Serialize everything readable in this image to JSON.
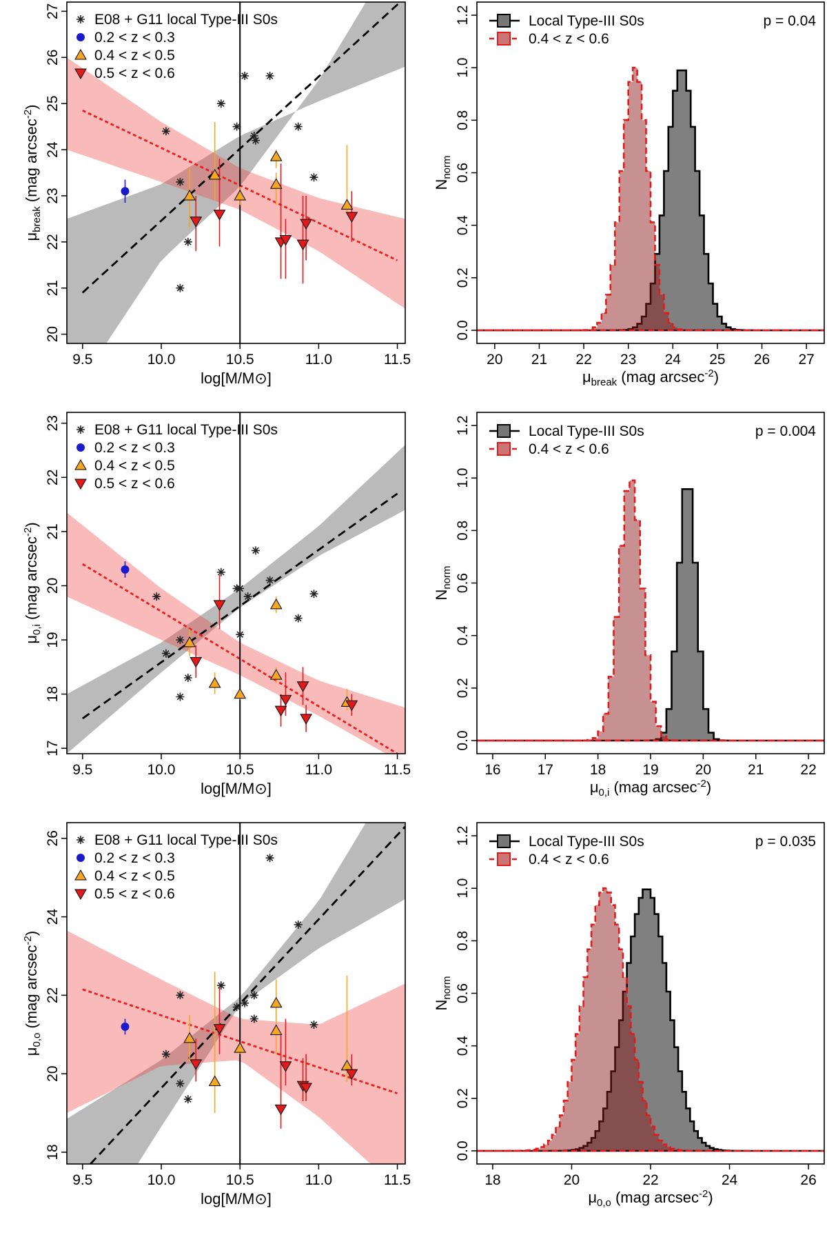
{
  "chart_data": [
    {
      "id": "mu-break-vs-mass",
      "type": "scatter",
      "xlabel": "log[M/M⊙]",
      "ylabel": {
        "sym": "μ",
        "sub": "break",
        "unit": " (mag arcsec",
        "exp": "-2",
        "close": ")"
      },
      "xlim": [
        9.4,
        11.55
      ],
      "ylim": [
        19.8,
        27.2
      ],
      "xticks": [
        9.5,
        10.0,
        10.5,
        11.0,
        11.5
      ],
      "xtick_labels": [
        "9.5",
        "10.0",
        "10.5",
        "11.0",
        "11.5"
      ],
      "yticks": [
        20,
        21,
        22,
        23,
        24,
        25,
        26,
        27
      ],
      "ytick_labels": [
        "20",
        "21",
        "22",
        "23",
        "24",
        "25",
        "26",
        "27"
      ],
      "vline_x": 10.5,
      "legend": [
        {
          "label": "E08 + G11 local Type-III S0s",
          "marker": "star",
          "color": "#000000"
        },
        {
          "label": "0.2 < z < 0.3",
          "marker": "circle",
          "color": "#1a1acc"
        },
        {
          "label": "0.4 < z < 0.5",
          "marker": "triangle-up",
          "color": "#f5a623"
        },
        {
          "label": "0.5 < z < 0.6",
          "marker": "triangle-down",
          "color": "#e31a1c"
        }
      ],
      "local_points": [
        [
          10.03,
          24.4
        ],
        [
          10.12,
          23.3
        ],
        [
          10.12,
          21.0
        ],
        [
          10.17,
          22.0
        ],
        [
          10.38,
          25.0
        ],
        [
          10.48,
          24.5
        ],
        [
          10.53,
          25.6
        ],
        [
          10.59,
          24.3
        ],
        [
          10.6,
          24.2
        ],
        [
          10.69,
          25.6
        ],
        [
          10.87,
          24.5
        ],
        [
          10.97,
          23.4
        ]
      ],
      "low_z_points": [
        [
          9.77,
          23.1,
          22.85,
          23.35
        ]
      ],
      "mid_z_points": [
        [
          10.18,
          23.0,
          22.3,
          23.6
        ],
        [
          10.34,
          23.45,
          22.9,
          24.6
        ],
        [
          10.5,
          23.0,
          22.8,
          23.2
        ],
        [
          10.73,
          23.85,
          23.6,
          24.0
        ],
        [
          10.73,
          23.25,
          22.8,
          23.5
        ],
        [
          11.18,
          22.8,
          22.6,
          24.1
        ]
      ],
      "high_z_points": [
        [
          10.22,
          22.45,
          21.8,
          23.0
        ],
        [
          10.37,
          22.6,
          21.9,
          23.8
        ],
        [
          10.76,
          22.0,
          21.2,
          23.7
        ],
        [
          10.79,
          22.05,
          21.2,
          22.5
        ],
        [
          10.9,
          21.95,
          21.1,
          23.0
        ],
        [
          10.92,
          22.4,
          21.6,
          23.0
        ],
        [
          11.21,
          22.55,
          22.0,
          23.1
        ]
      ],
      "local_fit": {
        "line": [
          [
            9.5,
            20.9
          ],
          [
            11.55,
            27.3
          ]
        ],
        "upper": [
          [
            9.4,
            22.5
          ],
          [
            10.0,
            23.25
          ],
          [
            10.5,
            24.3
          ],
          [
            11.0,
            25.05
          ],
          [
            11.55,
            25.8
          ]
        ],
        "lower": [
          [
            9.65,
            19.8
          ],
          [
            10.0,
            21.6
          ],
          [
            10.5,
            23.2
          ],
          [
            11.0,
            25.5
          ],
          [
            11.3,
            27.2
          ]
        ]
      },
      "hz_fit": {
        "line": [
          [
            9.5,
            24.85
          ],
          [
            11.5,
            21.6
          ]
        ],
        "upper": [
          [
            9.4,
            26.0
          ],
          [
            10.0,
            24.6
          ],
          [
            10.5,
            23.6
          ],
          [
            11.0,
            22.95
          ],
          [
            11.55,
            22.5
          ]
        ],
        "lower": [
          [
            9.4,
            24.0
          ],
          [
            10.0,
            23.3
          ],
          [
            10.5,
            22.7
          ],
          [
            11.0,
            21.8
          ],
          [
            11.55,
            20.55
          ]
        ]
      }
    },
    {
      "id": "mu-break-hist",
      "type": "histogram",
      "xlabel": {
        "sym": "μ",
        "sub": "break",
        "unit": " (mag arcsec",
        "exp": "-2",
        "close": ")"
      },
      "ylabel": {
        "sym": "N",
        "sub": "norm"
      },
      "xlim": [
        19.6,
        27.4
      ],
      "ylim": [
        -0.05,
        1.25
      ],
      "xticks": [
        20,
        21,
        22,
        23,
        24,
        25,
        26,
        27
      ],
      "xtick_labels": [
        "20",
        "21",
        "22",
        "23",
        "24",
        "25",
        "26",
        "27"
      ],
      "yticks": [
        0,
        0.2,
        0.4,
        0.6,
        0.8,
        1.0,
        1.2
      ],
      "ytick_labels": [
        "0.0",
        "0.2",
        "0.4",
        "0.6",
        "0.8",
        "1.0",
        "1.2"
      ],
      "legend": [
        {
          "label": "Local Type-III S0s"
        },
        {
          "label": "0.4 < z < 0.6"
        }
      ],
      "p_value": "p = 0.04",
      "local_mean": 24.2,
      "local_sigma": 0.35,
      "hz_mean": 23.15,
      "hz_sigma": 0.3,
      "bin_width": 0.1
    },
    {
      "id": "mu0i-vs-mass",
      "type": "scatter",
      "xlabel": "log[M/M⊙]",
      "ylabel": {
        "sym": "μ",
        "sub": "0,i",
        "unit": " (mag arcsec",
        "exp": "-2",
        "close": ")"
      },
      "xlim": [
        9.4,
        11.55
      ],
      "ylim": [
        16.9,
        23.2
      ],
      "xticks": [
        9.5,
        10.0,
        10.5,
        11.0,
        11.5
      ],
      "xtick_labels": [
        "9.5",
        "10.0",
        "10.5",
        "11.0",
        "11.5"
      ],
      "yticks": [
        17,
        18,
        19,
        20,
        21,
        22,
        23
      ],
      "ytick_labels": [
        "17",
        "18",
        "19",
        "20",
        "21",
        "22",
        "23"
      ],
      "vline_x": 10.5,
      "legend": [
        {
          "label": "E08 + G11 local Type-III S0s",
          "marker": "star",
          "color": "#000000"
        },
        {
          "label": "0.2 < z < 0.3",
          "marker": "circle",
          "color": "#1a1acc"
        },
        {
          "label": "0.4 < z < 0.5",
          "marker": "triangle-up",
          "color": "#f5a623"
        },
        {
          "label": "0.5 < z < 0.6",
          "marker": "triangle-down",
          "color": "#e31a1c"
        }
      ],
      "local_points": [
        [
          9.97,
          19.8
        ],
        [
          10.03,
          18.75
        ],
        [
          10.12,
          19.0
        ],
        [
          10.12,
          17.95
        ],
        [
          10.17,
          18.3
        ],
        [
          10.38,
          20.25
        ],
        [
          10.48,
          19.95
        ],
        [
          10.5,
          19.1
        ],
        [
          10.5,
          19.95
        ],
        [
          10.55,
          19.8
        ],
        [
          10.6,
          20.65
        ],
        [
          10.69,
          20.1
        ],
        [
          10.87,
          19.4
        ],
        [
          10.97,
          19.85
        ]
      ],
      "low_z_points": [
        [
          9.77,
          20.3,
          20.15,
          20.45
        ]
      ],
      "mid_z_points": [
        [
          10.18,
          18.95,
          18.7,
          19.2
        ],
        [
          10.34,
          18.2,
          18.0,
          18.4
        ],
        [
          10.5,
          18.0,
          17.9,
          18.1
        ],
        [
          10.73,
          18.35,
          18.2,
          18.5
        ],
        [
          10.73,
          19.65,
          19.5,
          19.8
        ],
        [
          11.18,
          17.85,
          17.7,
          18.1
        ]
      ],
      "high_z_points": [
        [
          10.22,
          18.6,
          18.3,
          18.9
        ],
        [
          10.37,
          19.65,
          19.2,
          20.2
        ],
        [
          10.76,
          17.7,
          17.4,
          18.0
        ],
        [
          10.79,
          17.9,
          17.6,
          18.4
        ],
        [
          10.9,
          18.15,
          17.8,
          18.5
        ],
        [
          10.92,
          17.55,
          17.3,
          17.8
        ],
        [
          11.21,
          17.8,
          17.6,
          18.0
        ]
      ],
      "local_fit": {
        "line": [
          [
            9.5,
            17.55
          ],
          [
            11.5,
            21.7
          ]
        ],
        "upper": [
          [
            9.4,
            18.0
          ],
          [
            10.0,
            18.95
          ],
          [
            10.5,
            19.95
          ],
          [
            11.0,
            21.1
          ],
          [
            11.55,
            22.6
          ]
        ],
        "lower": [
          [
            9.4,
            16.9
          ],
          [
            10.0,
            18.4
          ],
          [
            10.5,
            19.6
          ],
          [
            11.0,
            20.55
          ],
          [
            11.55,
            21.4
          ]
        ]
      },
      "hz_fit": {
        "line": [
          [
            9.5,
            20.4
          ],
          [
            11.5,
            16.9
          ]
        ],
        "upper": [
          [
            9.4,
            21.35
          ],
          [
            10.0,
            19.95
          ],
          [
            10.5,
            18.95
          ],
          [
            11.0,
            18.25
          ],
          [
            11.55,
            17.75
          ]
        ],
        "lower": [
          [
            9.4,
            19.8
          ],
          [
            10.0,
            19.0
          ],
          [
            10.5,
            18.35
          ],
          [
            11.0,
            17.6
          ],
          [
            11.55,
            16.7
          ]
        ]
      }
    },
    {
      "id": "mu0i-hist",
      "type": "histogram",
      "xlabel": {
        "sym": "μ",
        "sub": "0,i",
        "unit": " (mag arcsec",
        "exp": "-2",
        "close": ")"
      },
      "ylabel": {
        "sym": "N",
        "sub": "norm"
      },
      "xlim": [
        15.7,
        22.3
      ],
      "ylim": [
        -0.05,
        1.25
      ],
      "xticks": [
        16,
        17,
        18,
        19,
        20,
        21,
        22
      ],
      "xtick_labels": [
        "16",
        "17",
        "18",
        "19",
        "20",
        "21",
        "22"
      ],
      "yticks": [
        0,
        0.2,
        0.4,
        0.6,
        0.8,
        1.0,
        1.2
      ],
      "ytick_labels": [
        "0.0",
        "0.2",
        "0.4",
        "0.6",
        "0.8",
        "1.0",
        "1.2"
      ],
      "legend": [
        {
          "label": "Local Type-III S0s"
        },
        {
          "label": "0.4 < z < 0.6"
        }
      ],
      "p_value": "p = 0.004",
      "local_mean": 19.7,
      "local_sigma": 0.17,
      "hz_mean": 18.62,
      "hz_sigma": 0.22,
      "bin_width": 0.1
    },
    {
      "id": "mu0o-vs-mass",
      "type": "scatter",
      "xlabel": "log[M/M⊙]",
      "ylabel": {
        "sym": "μ",
        "sub": "0,o",
        "unit": " (mag arcsec",
        "exp": "-2",
        "close": ")"
      },
      "xlim": [
        9.4,
        11.55
      ],
      "ylim": [
        17.7,
        26.4
      ],
      "xticks": [
        9.5,
        10.0,
        10.5,
        11.0,
        11.5
      ],
      "xtick_labels": [
        "9.5",
        "10.0",
        "10.5",
        "11.0",
        "11.5"
      ],
      "yticks": [
        18,
        20,
        22,
        24,
        26
      ],
      "ytick_labels": [
        "18",
        "20",
        "22",
        "24",
        "26"
      ],
      "vline_x": 10.5,
      "legend": [
        {
          "label": "E08 + G11 local Type-III S0s",
          "marker": "star",
          "color": "#000000"
        },
        {
          "label": "0.2 < z < 0.3",
          "marker": "circle",
          "color": "#1a1acc"
        },
        {
          "label": "0.4 < z < 0.5",
          "marker": "triangle-up",
          "color": "#f5a623"
        },
        {
          "label": "0.5 < z < 0.6",
          "marker": "triangle-down",
          "color": "#e31a1c"
        }
      ],
      "local_points": [
        [
          10.03,
          20.5
        ],
        [
          10.12,
          22.0
        ],
        [
          10.12,
          19.75
        ],
        [
          10.17,
          19.35
        ],
        [
          10.38,
          22.25
        ],
        [
          10.48,
          21.7
        ],
        [
          10.53,
          21.8
        ],
        [
          10.59,
          22.0
        ],
        [
          10.59,
          21.4
        ],
        [
          10.69,
          25.5
        ],
        [
          10.87,
          23.8
        ],
        [
          10.97,
          21.25
        ]
      ],
      "low_z_points": [
        [
          9.77,
          21.2,
          21.0,
          21.4
        ]
      ],
      "mid_z_points": [
        [
          10.18,
          20.9,
          20.3,
          21.5
        ],
        [
          10.34,
          19.8,
          19.0,
          22.6
        ],
        [
          10.5,
          20.65,
          20.5,
          20.8
        ],
        [
          10.73,
          21.8,
          21.4,
          22.4
        ],
        [
          10.73,
          21.1,
          20.5,
          21.8
        ],
        [
          11.18,
          20.2,
          19.8,
          22.5
        ]
      ],
      "high_z_points": [
        [
          10.22,
          20.25,
          19.8,
          20.9
        ],
        [
          10.37,
          21.15,
          20.5,
          22.2
        ],
        [
          10.76,
          19.1,
          18.6,
          21.0
        ],
        [
          10.79,
          20.2,
          19.7,
          21.4
        ],
        [
          10.9,
          19.7,
          19.3,
          20.4
        ],
        [
          10.92,
          19.65,
          19.3,
          20.5
        ],
        [
          11.21,
          20.0,
          19.7,
          20.5
        ]
      ],
      "local_fit": {
        "line": [
          [
            9.55,
            17.7
          ],
          [
            11.55,
            26.3
          ]
        ],
        "upper": [
          [
            9.4,
            18.85
          ],
          [
            10.0,
            20.35
          ],
          [
            10.5,
            21.95
          ],
          [
            11.0,
            24.4
          ],
          [
            11.3,
            26.4
          ]
        ],
        "lower": [
          [
            9.85,
            17.7
          ],
          [
            10.0,
            18.65
          ],
          [
            10.5,
            21.75
          ],
          [
            11.0,
            23.2
          ],
          [
            11.55,
            24.45
          ]
        ]
      },
      "hz_fit": {
        "line": [
          [
            9.5,
            22.15
          ],
          [
            11.5,
            19.5
          ]
        ],
        "upper": [
          [
            9.4,
            23.65
          ],
          [
            10.0,
            22.4
          ],
          [
            10.5,
            21.4
          ],
          [
            11.0,
            21.25
          ],
          [
            11.55,
            22.3
          ]
        ],
        "lower": [
          [
            9.4,
            19.0
          ],
          [
            10.0,
            20.2
          ],
          [
            10.5,
            20.35
          ],
          [
            11.0,
            18.9
          ],
          [
            11.55,
            16.9
          ]
        ]
      }
    },
    {
      "id": "mu0o-hist",
      "type": "histogram",
      "xlabel": {
        "sym": "μ",
        "sub": "0,o",
        "unit": " (mag arcsec",
        "exp": "-2",
        "close": ")"
      },
      "ylabel": {
        "sym": "N",
        "sub": "norm"
      },
      "xlim": [
        17.6,
        26.4
      ],
      "ylim": [
        -0.05,
        1.25
      ],
      "xticks": [
        18,
        20,
        22,
        24,
        26
      ],
      "xtick_labels": [
        "18",
        "20",
        "22",
        "24",
        "26"
      ],
      "yticks": [
        0,
        0.2,
        0.4,
        0.6,
        0.8,
        1.0,
        1.2
      ],
      "ytick_labels": [
        "0.0",
        "0.2",
        "0.4",
        "0.6",
        "0.8",
        "1.0",
        "1.2"
      ],
      "legend": [
        {
          "label": "Local Type-III S0s"
        },
        {
          "label": "0.4 < z < 0.6"
        }
      ],
      "p_value": "p = 0.035",
      "local_mean": 21.9,
      "local_sigma": 0.55,
      "hz_mean": 20.85,
      "hz_sigma": 0.55,
      "bin_width": 0.1
    }
  ]
}
